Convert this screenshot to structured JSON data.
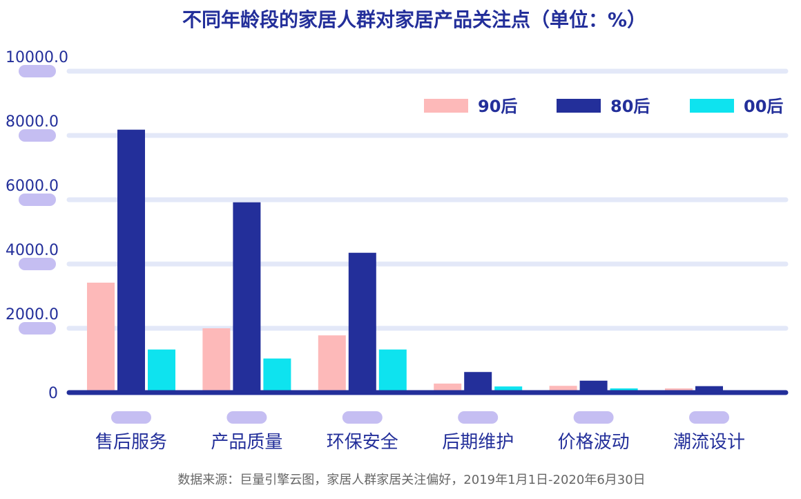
{
  "chart_data": {
    "type": "bar",
    "title": "不同年龄段的家居人群对家居产品关注点（单位：%）",
    "categories": [
      "售后服务",
      "产品质量",
      "环保安全",
      "后期维护",
      "价格波动",
      "潮流设计"
    ],
    "series": [
      {
        "name": "90后",
        "color": "#FDB9B9",
        "values": [
          3420,
          2000,
          1780,
          280,
          210,
          130
        ]
      },
      {
        "name": "80后",
        "color": "#232F9A",
        "values": [
          8180,
          5920,
          4350,
          640,
          370,
          200
        ]
      },
      {
        "name": "00后",
        "color": "#0EE3EF",
        "values": [
          1340,
          1060,
          1340,
          190,
          130,
          70
        ]
      }
    ],
    "y_ticks": [
      "0",
      "2000.0",
      "4000.0",
      "6000.0",
      "8000.0",
      "10000.0"
    ],
    "ylim": [
      0,
      10000
    ],
    "grid": true,
    "legend_position": "top-right",
    "source": "数据来源：巨量引擎云图，家居人群家居关注偏好，2019年1月1日-2020年6月30日"
  },
  "colors": {
    "title": "#232F9A",
    "axis": "#232F9A",
    "grid": "#E3E8F8",
    "pill": "#C5BEF2",
    "tick_text": "#232F9A",
    "category_text": "#232F9A",
    "source_text": "#666666"
  }
}
